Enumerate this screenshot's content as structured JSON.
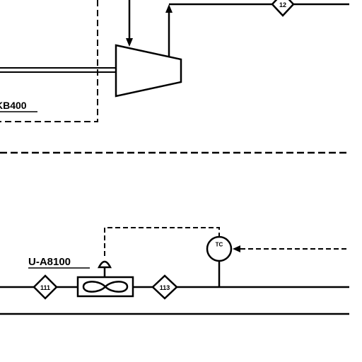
{
  "drawing": {
    "compressor_label": "KB400",
    "fan_label": "U-A8100",
    "controller_label": "TC",
    "stream_tags": {
      "top": "12",
      "left": "111",
      "right": "113"
    }
  },
  "colors": {
    "ink": "#000000",
    "background": "#ffffff"
  }
}
